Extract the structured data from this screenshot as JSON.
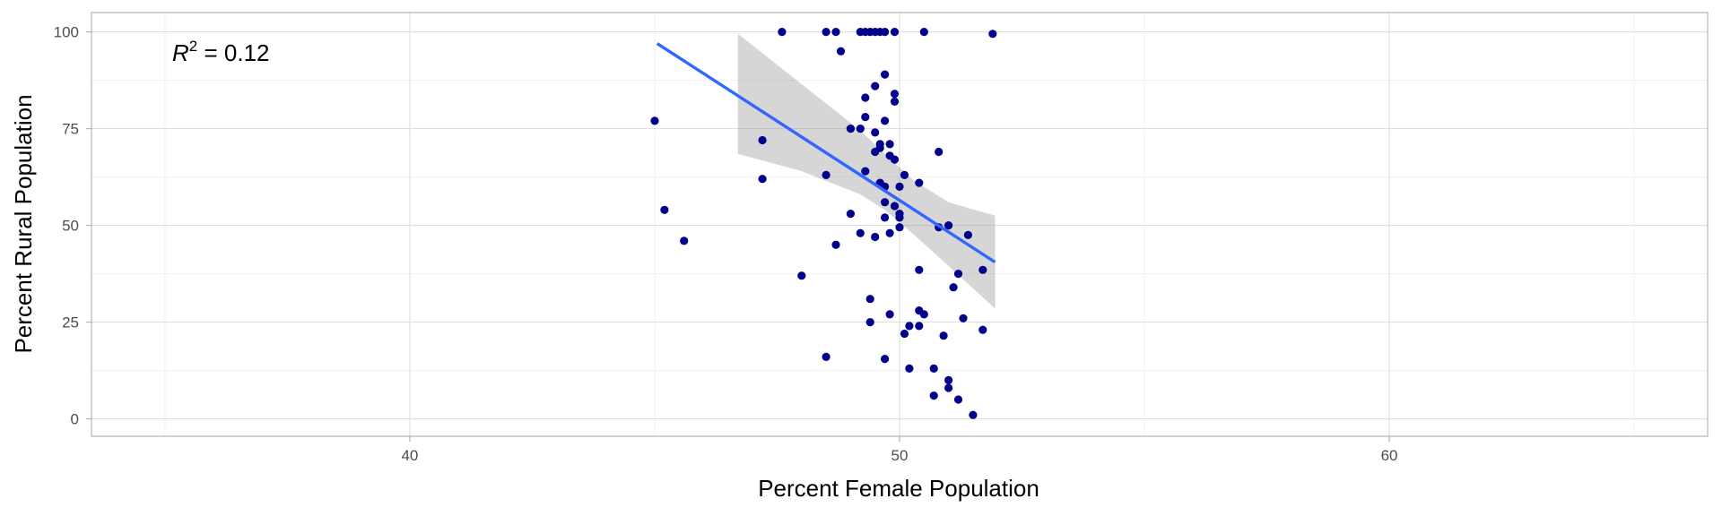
{
  "chart_data": {
    "type": "scatter",
    "xlabel": "Percent Female Population",
    "ylabel": "Percent Rural Population",
    "xlim": [
      33.5,
      66.5
    ],
    "ylim": [
      -4.5,
      105
    ],
    "x_ticks": [
      40,
      50,
      60
    ],
    "y_ticks": [
      0,
      25,
      50,
      75,
      100
    ],
    "grid": true,
    "annotation": {
      "r_symbol": "R",
      "r_exponent": "2",
      "r_text": " = 0.12"
    },
    "colors": {
      "points": "#00008b",
      "fit_line": "#3366ff",
      "ribbon": "#999999",
      "panel_border": "#b3b3b3"
    },
    "fit_line": {
      "x": [
        45.05,
        51.95
      ],
      "y": [
        97.0,
        40.5
      ]
    },
    "confidence_band": {
      "x": [
        46.7,
        48.0,
        49.2,
        49.7,
        50.3,
        51.0,
        51.95
      ],
      "upper": [
        99.5,
        86.5,
        74.5,
        68.5,
        61.5,
        56.0,
        52.5
      ],
      "lower": [
        68.5,
        64.0,
        58.0,
        54.0,
        47.5,
        39.5,
        28.5
      ]
    },
    "series": [
      {
        "values": [
          {
            "x": 47.6,
            "y": 100
          },
          {
            "x": 48.5,
            "y": 100
          },
          {
            "x": 48.7,
            "y": 100
          },
          {
            "x": 49.2,
            "y": 100
          },
          {
            "x": 49.3,
            "y": 100
          },
          {
            "x": 49.4,
            "y": 100
          },
          {
            "x": 49.5,
            "y": 100
          },
          {
            "x": 49.6,
            "y": 100
          },
          {
            "x": 49.7,
            "y": 100
          },
          {
            "x": 49.9,
            "y": 100
          },
          {
            "x": 50.5,
            "y": 100
          },
          {
            "x": 51.9,
            "y": 99.5
          },
          {
            "x": 48.8,
            "y": 95
          },
          {
            "x": 49.7,
            "y": 89
          },
          {
            "x": 49.5,
            "y": 86
          },
          {
            "x": 49.9,
            "y": 84
          },
          {
            "x": 49.3,
            "y": 83
          },
          {
            "x": 49.9,
            "y": 82
          },
          {
            "x": 49.3,
            "y": 78
          },
          {
            "x": 45.0,
            "y": 77
          },
          {
            "x": 49.7,
            "y": 77
          },
          {
            "x": 49.0,
            "y": 75
          },
          {
            "x": 49.2,
            "y": 75
          },
          {
            "x": 49.5,
            "y": 74
          },
          {
            "x": 47.2,
            "y": 72
          },
          {
            "x": 49.6,
            "y": 71
          },
          {
            "x": 49.8,
            "y": 71
          },
          {
            "x": 49.6,
            "y": 70
          },
          {
            "x": 49.5,
            "y": 69
          },
          {
            "x": 50.8,
            "y": 69
          },
          {
            "x": 49.8,
            "y": 68
          },
          {
            "x": 49.9,
            "y": 67
          },
          {
            "x": 49.3,
            "y": 64
          },
          {
            "x": 50.1,
            "y": 63
          },
          {
            "x": 48.5,
            "y": 63
          },
          {
            "x": 47.2,
            "y": 62
          },
          {
            "x": 49.6,
            "y": 61
          },
          {
            "x": 49.7,
            "y": 60
          },
          {
            "x": 50.4,
            "y": 61
          },
          {
            "x": 50.0,
            "y": 60
          },
          {
            "x": 49.7,
            "y": 56
          },
          {
            "x": 49.9,
            "y": 55
          },
          {
            "x": 45.2,
            "y": 54
          },
          {
            "x": 49.0,
            "y": 53
          },
          {
            "x": 49.7,
            "y": 52
          },
          {
            "x": 50.0,
            "y": 53
          },
          {
            "x": 50.0,
            "y": 52
          },
          {
            "x": 51.0,
            "y": 50
          },
          {
            "x": 50.8,
            "y": 49.5
          },
          {
            "x": 50.0,
            "y": 49.5
          },
          {
            "x": 49.8,
            "y": 48
          },
          {
            "x": 49.2,
            "y": 48
          },
          {
            "x": 49.5,
            "y": 47
          },
          {
            "x": 51.4,
            "y": 47.5
          },
          {
            "x": 45.6,
            "y": 46
          },
          {
            "x": 48.7,
            "y": 45
          },
          {
            "x": 50.4,
            "y": 38.5
          },
          {
            "x": 51.2,
            "y": 37.5
          },
          {
            "x": 51.7,
            "y": 38.5
          },
          {
            "x": 48.0,
            "y": 37
          },
          {
            "x": 51.1,
            "y": 34
          },
          {
            "x": 49.4,
            "y": 31
          },
          {
            "x": 50.4,
            "y": 28
          },
          {
            "x": 49.8,
            "y": 27
          },
          {
            "x": 50.5,
            "y": 27
          },
          {
            "x": 51.3,
            "y": 26
          },
          {
            "x": 49.4,
            "y": 25
          },
          {
            "x": 50.2,
            "y": 24
          },
          {
            "x": 50.4,
            "y": 24
          },
          {
            "x": 51.7,
            "y": 23
          },
          {
            "x": 50.1,
            "y": 22
          },
          {
            "x": 50.9,
            "y": 21.5
          },
          {
            "x": 48.5,
            "y": 16
          },
          {
            "x": 49.7,
            "y": 15.5
          },
          {
            "x": 50.2,
            "y": 13
          },
          {
            "x": 50.7,
            "y": 13
          },
          {
            "x": 51.0,
            "y": 10
          },
          {
            "x": 51.0,
            "y": 8
          },
          {
            "x": 50.7,
            "y": 6
          },
          {
            "x": 51.2,
            "y": 5
          },
          {
            "x": 51.5,
            "y": 1
          }
        ]
      }
    ]
  }
}
